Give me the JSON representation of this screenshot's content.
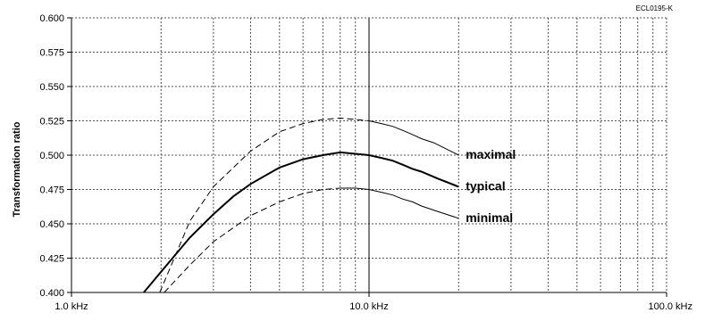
{
  "chart_data": {
    "type": "line",
    "title": "",
    "code_label": "ECL0195-K",
    "ylabel": "Transformation ratio",
    "xlabel": "",
    "x_scale": "log",
    "xlim": [
      1.0,
      100.0
    ],
    "ylim": [
      0.4,
      0.6
    ],
    "x_ticks": [
      {
        "value": 1.0,
        "label": "1.0 kHz"
      },
      {
        "value": 10.0,
        "label": "10.0 kHz"
      },
      {
        "value": 100.0,
        "label": "100.0 kHz"
      }
    ],
    "y_ticks": [
      {
        "value": 0.4,
        "label": "0.400"
      },
      {
        "value": 0.425,
        "label": "0.425"
      },
      {
        "value": 0.45,
        "label": "0.450"
      },
      {
        "value": 0.475,
        "label": "0.475"
      },
      {
        "value": 0.5,
        "label": "0.500"
      },
      {
        "value": 0.525,
        "label": "0.525"
      },
      {
        "value": 0.55,
        "label": "0.550"
      },
      {
        "value": 0.575,
        "label": "0.575"
      },
      {
        "value": 0.6,
        "label": "0.600"
      }
    ],
    "grid": true,
    "legend": "direct labels at right end of curves",
    "series": [
      {
        "name": "maximal",
        "style": "dashed-then-solid",
        "switch_x": 10.0,
        "x": [
          1.98,
          2.5,
          3.0,
          4.0,
          5.0,
          6.0,
          7.0,
          8.0,
          9.0,
          10.0,
          11.0,
          12.0,
          13.0,
          14.0,
          15.0,
          16.5,
          18.0,
          20.0
        ],
        "y": [
          0.4,
          0.452,
          0.477,
          0.503,
          0.517,
          0.523,
          0.526,
          0.527,
          0.526,
          0.525,
          0.523,
          0.521,
          0.518,
          0.515,
          0.512,
          0.509,
          0.505,
          0.5
        ]
      },
      {
        "name": "typical",
        "style": "solid",
        "x": [
          1.75,
          2.0,
          2.5,
          3.0,
          3.5,
          4.0,
          5.0,
          6.0,
          7.0,
          8.0,
          9.0,
          10.0,
          11.0,
          12.0,
          13.0,
          14.0,
          15.0,
          17.0,
          20.0
        ],
        "y": [
          0.4,
          0.415,
          0.44,
          0.457,
          0.47,
          0.479,
          0.491,
          0.497,
          0.5,
          0.502,
          0.501,
          0.5,
          0.498,
          0.496,
          0.493,
          0.49,
          0.488,
          0.483,
          0.477
        ]
      },
      {
        "name": "minimal",
        "style": "dashed-then-solid",
        "switch_x": 8.0,
        "x": [
          2.05,
          2.5,
          3.0,
          4.0,
          5.0,
          6.0,
          7.0,
          8.0,
          9.0,
          10.0,
          11.0,
          12.0,
          13.0,
          14.0,
          15.0,
          17.0,
          20.0
        ],
        "y": [
          0.4,
          0.42,
          0.437,
          0.456,
          0.466,
          0.472,
          0.475,
          0.476,
          0.476,
          0.475,
          0.473,
          0.471,
          0.468,
          0.466,
          0.463,
          0.459,
          0.454
        ]
      }
    ]
  }
}
